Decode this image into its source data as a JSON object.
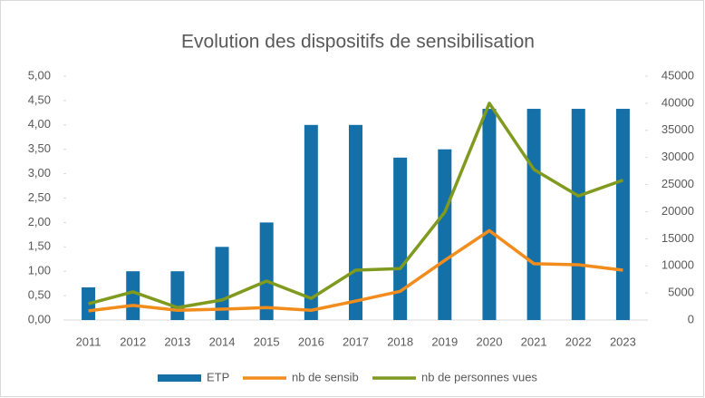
{
  "chart_data": {
    "type": "bar-line",
    "title": "Evolution des dispositifs de sensibilisation",
    "categories": [
      "2011",
      "2012",
      "2013",
      "2014",
      "2015",
      "2016",
      "2017",
      "2018",
      "2019",
      "2020",
      "2021",
      "2022",
      "2023"
    ],
    "series": [
      {
        "name": "ETP",
        "color": "#1570a8",
        "type": "bar",
        "axis": "y",
        "values": [
          0.67,
          1,
          1,
          1.5,
          2,
          4,
          4,
          3.33,
          3.5,
          4.33,
          4.33,
          4.33,
          4.33
        ]
      },
      {
        "name": "nb de sensib",
        "color": "#f28c1c",
        "type": "line",
        "axis": "y2",
        "values": [
          1700,
          2700,
          1800,
          2000,
          2300,
          1800,
          3500,
          5300,
          11000,
          16500,
          10400,
          10200,
          9200
        ]
      },
      {
        "name": "nb de personnes vues",
        "color": "#7f9a1f",
        "type": "line",
        "axis": "y2",
        "values": [
          3000,
          5200,
          2300,
          3700,
          7200,
          4000,
          9200,
          9500,
          19900,
          40000,
          27800,
          22900,
          25800
        ]
      }
    ],
    "ylim": [
      0,
      5
    ],
    "yticks": [
      {
        "value": 0,
        "label": "0,00"
      },
      {
        "value": 0.5,
        "label": "0,50"
      },
      {
        "value": 1,
        "label": "1,00"
      },
      {
        "value": 1.5,
        "label": "1,50"
      },
      {
        "value": 2,
        "label": "2,00"
      },
      {
        "value": 2.5,
        "label": "2,50"
      },
      {
        "value": 3,
        "label": "3,00"
      },
      {
        "value": 3.5,
        "label": "3,50"
      },
      {
        "value": 4,
        "label": "4,00"
      },
      {
        "value": 4.5,
        "label": "4,50"
      },
      {
        "value": 5,
        "label": "5,00"
      }
    ],
    "y2lim": [
      0,
      45000
    ],
    "y2ticks": [
      0,
      5000,
      10000,
      15000,
      20000,
      25000,
      30000,
      35000,
      40000,
      45000
    ],
    "legend": "bottom"
  }
}
